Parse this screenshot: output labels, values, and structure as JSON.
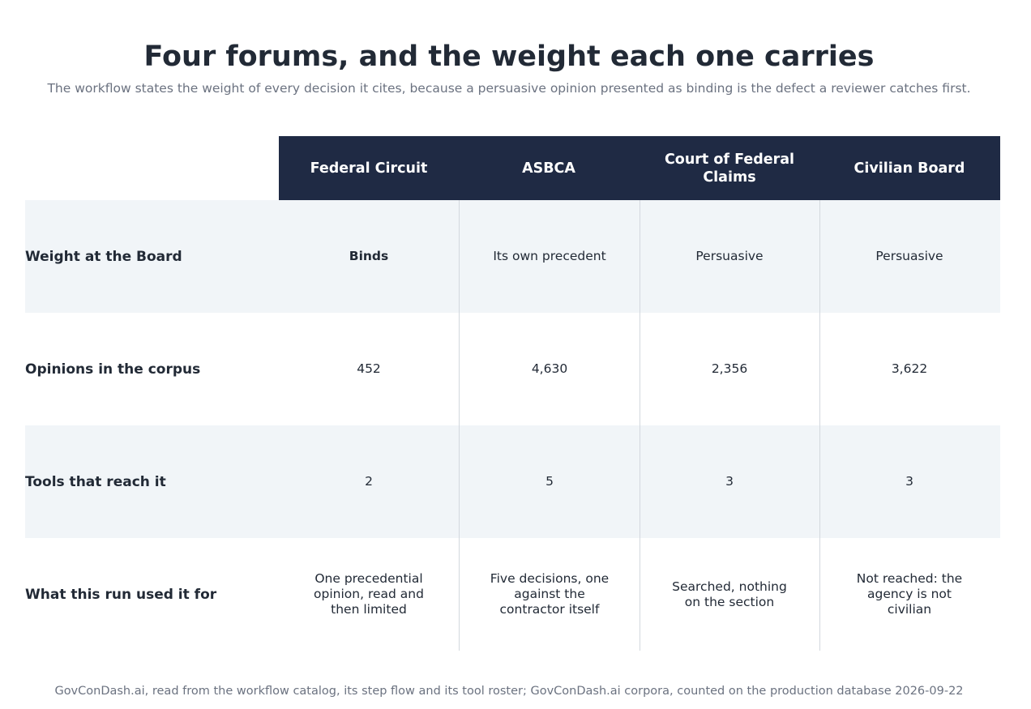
{
  "title": "Four forums, and the weight each one carries",
  "subtitle": "The workflow states the weight of every decision it cites, because a persuasive opinion presented as binding is the defect a reviewer catches first.",
  "table": {
    "columns": [
      "Federal Circuit",
      "ASBCA",
      "Court of Federal Claims",
      "Civilian Board"
    ],
    "rows": [
      {
        "label": "Weight at the Board",
        "cells": [
          "Binds",
          "Its own precedent",
          "Persuasive",
          "Persuasive"
        ]
      },
      {
        "label": "Opinions in the corpus",
        "cells": [
          "452",
          "4,630",
          "2,356",
          "3,622"
        ]
      },
      {
        "label": "Tools that reach it",
        "cells": [
          "2",
          "5",
          "3",
          "3"
        ]
      },
      {
        "label": "What this run used it for",
        "cells": [
          "One precedential opinion, read and then limited",
          "Five decisions, one against the contractor itself",
          "Searched, nothing on the section",
          "Not reached: the agency is not civilian"
        ]
      }
    ]
  },
  "footer": "GovConDash.ai, read from the workflow catalog, its step flow and its tool roster; GovConDash.ai corpora, counted on the production database 2026-09-22",
  "colors": {
    "header_bg": "#1f2a44",
    "row_shade": "#f1f5f8",
    "title": "#222a36",
    "muted": "#6b7280"
  }
}
